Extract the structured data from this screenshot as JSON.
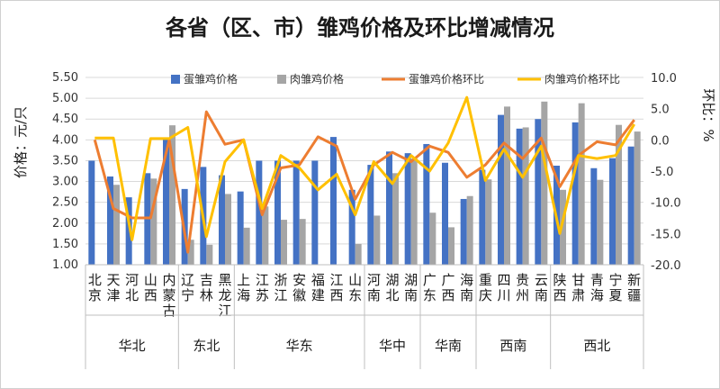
{
  "chart_data": {
    "type": "bar",
    "title": "各省（区、市）雏鸡价格及环比增减情况",
    "ylabel_left": "价格：元/只",
    "ylabel_right": "环比：%",
    "ylim_left": [
      1.0,
      5.5
    ],
    "yticks_left": [
      "1.00",
      "1.50",
      "2.00",
      "2.50",
      "3.00",
      "3.50",
      "4.00",
      "4.50",
      "5.00",
      "5.50"
    ],
    "ylim_right": [
      -20,
      10
    ],
    "yticks_right": [
      "10.0",
      "5.0",
      "0.0",
      "-5.0",
      "-10.0",
      "-15.0",
      "-20.0"
    ],
    "categories": [
      "北京",
      "天津",
      "河北",
      "山西",
      "内蒙古",
      "辽宁",
      "吉林",
      "黑龙江",
      "上海",
      "江苏",
      "浙江",
      "安徽",
      "福建",
      "江西",
      "山东",
      "河南",
      "湖北",
      "湖南",
      "广东",
      "广西",
      "海南",
      "重庆",
      "四川",
      "贵州",
      "云南",
      "陕西",
      "甘肃",
      "青海",
      "宁夏",
      "新疆"
    ],
    "regions": [
      {
        "name": "华北",
        "start": 0,
        "end": 5
      },
      {
        "name": "东北",
        "start": 5,
        "end": 8
      },
      {
        "name": "华东",
        "start": 8,
        "end": 15
      },
      {
        "name": "华中",
        "start": 15,
        "end": 18
      },
      {
        "name": "华南",
        "start": 18,
        "end": 21
      },
      {
        "name": "西南",
        "start": 21,
        "end": 25
      },
      {
        "name": "西北",
        "start": 25,
        "end": 30
      }
    ],
    "legend_position": "top-right",
    "series": [
      {
        "name": "蛋雏鸡价格",
        "type": "bar",
        "axis": "left",
        "color": "#4472C4",
        "values": [
          3.5,
          3.12,
          2.62,
          3.2,
          4.03,
          2.82,
          3.35,
          3.15,
          2.76,
          3.5,
          3.5,
          3.5,
          3.5,
          4.07,
          2.8,
          3.4,
          3.72,
          3.68,
          3.9,
          3.45,
          2.58,
          3.28,
          4.6,
          4.27,
          4.5,
          3.38,
          4.42,
          3.32,
          3.56,
          3.84
        ]
      },
      {
        "name": "肉雏鸡价格",
        "type": "bar",
        "axis": "left",
        "color": "#A5A5A5",
        "values": [
          null,
          2.92,
          null,
          3.07,
          4.35,
          1.6,
          1.48,
          2.7,
          1.89,
          2.4,
          2.08,
          2.1,
          null,
          null,
          1.5,
          2.18,
          3.2,
          3.55,
          2.25,
          1.9,
          2.65,
          3.05,
          4.8,
          4.3,
          4.92,
          2.8,
          4.88,
          3.04,
          4.36,
          4.2
        ]
      },
      {
        "name": "蛋雏鸡价格环比",
        "type": "line",
        "axis": "right",
        "color": "#ED7D31",
        "values": [
          0.0,
          -11.0,
          -12.5,
          -12.5,
          0.0,
          -18.0,
          4.5,
          -0.7,
          0.0,
          -12.0,
          -4.5,
          -4.0,
          0.5,
          -1.0,
          -9.5,
          -4.0,
          -2.0,
          -3.5,
          -1.0,
          -2.0,
          -6.0,
          -4.0,
          -0.5,
          -3.0,
          0.3,
          -7.5,
          -2.5,
          -0.3,
          -0.8,
          3.2
        ]
      },
      {
        "name": "肉雏鸡价格环比",
        "type": "line",
        "axis": "right",
        "color": "#FFC000",
        "values": [
          0.3,
          0.3,
          -16.0,
          0.2,
          0.2,
          2.0,
          -15.5,
          -3.5,
          0.0,
          -11.0,
          -2.5,
          -4.5,
          -8.0,
          -5.5,
          -12.0,
          -3.5,
          -7.0,
          -2.5,
          -5.0,
          -0.5,
          6.8,
          -6.5,
          -1.5,
          -6.0,
          -1.0,
          -15.0,
          -2.5,
          -3.0,
          -2.5,
          2.5
        ]
      }
    ]
  }
}
